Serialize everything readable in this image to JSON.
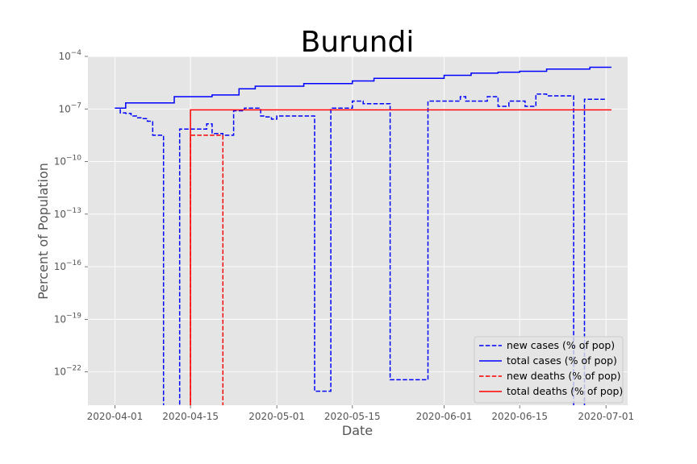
{
  "chart_data": {
    "type": "line",
    "title": "Burundi",
    "xlabel": "Date",
    "ylabel": "Percent of Population",
    "yscale": "log",
    "ylim_exp": [
      -23.9,
      -4
    ],
    "xlim": [
      "2020-03-27",
      "2020-07-05"
    ],
    "grid": true,
    "legend_position": "lower right",
    "x_ticks": [
      "2020-04-01",
      "2020-04-15",
      "2020-05-01",
      "2020-05-15",
      "2020-06-01",
      "2020-06-15",
      "2020-07-01"
    ],
    "y_ticks": [
      {
        "exp": -4,
        "base": "10",
        "power": "−4"
      },
      {
        "exp": -7,
        "base": "10",
        "power": "−7"
      },
      {
        "exp": -10,
        "base": "10",
        "power": "−10"
      },
      {
        "exp": -13,
        "base": "10",
        "power": "−13"
      },
      {
        "exp": -16,
        "base": "10",
        "power": "−16"
      },
      {
        "exp": -19,
        "base": "10",
        "power": "−19"
      },
      {
        "exp": -22,
        "base": "10",
        "power": "−22"
      }
    ],
    "series": [
      {
        "name": "new cases (% of pop)",
        "color": "#0000ff",
        "style": "dashed",
        "points": [
          [
            "2020-04-01",
            -6.95
          ],
          [
            "2020-04-02",
            -7.22
          ],
          [
            "2020-04-03",
            -7.25
          ],
          [
            "2020-04-04",
            -7.4
          ],
          [
            "2020-04-05",
            -7.5
          ],
          [
            "2020-04-06",
            -7.55
          ],
          [
            "2020-04-07",
            -7.7
          ],
          [
            "2020-04-08",
            -8.5
          ],
          [
            "2020-04-09",
            -8.5
          ],
          [
            "2020-04-10",
            null
          ],
          [
            "2020-04-11",
            null
          ],
          [
            "2020-04-12",
            null
          ],
          [
            "2020-04-13",
            -8.15
          ],
          [
            "2020-04-14",
            -8.15
          ],
          [
            "2020-04-15",
            -8.15
          ],
          [
            "2020-04-16",
            -8.15
          ],
          [
            "2020-04-17",
            -8.15
          ],
          [
            "2020-04-18",
            -7.85
          ],
          [
            "2020-04-19",
            -8.4
          ],
          [
            "2020-04-20",
            -8.4
          ],
          [
            "2020-04-21",
            -8.5
          ],
          [
            "2020-04-22",
            -8.5
          ],
          [
            "2020-04-23",
            -7.1
          ],
          [
            "2020-04-24",
            -7.1
          ],
          [
            "2020-04-25",
            -6.95
          ],
          [
            "2020-04-26",
            -6.95
          ],
          [
            "2020-04-27",
            -6.95
          ],
          [
            "2020-04-28",
            -7.4
          ],
          [
            "2020-04-29",
            -7.45
          ],
          [
            "2020-04-30",
            -7.58
          ],
          [
            "2020-05-01",
            -7.4
          ],
          [
            "2020-05-02",
            -7.4
          ],
          [
            "2020-05-03",
            -7.4
          ],
          [
            "2020-05-04",
            -7.4
          ],
          [
            "2020-05-05",
            -7.4
          ],
          [
            "2020-05-06",
            -7.4
          ],
          [
            "2020-05-07",
            -7.4
          ],
          [
            "2020-05-08",
            -23.1
          ],
          [
            "2020-05-09",
            -23.1
          ],
          [
            "2020-05-10",
            -23.1
          ],
          [
            "2020-05-11",
            -6.95
          ],
          [
            "2020-05-12",
            -6.95
          ],
          [
            "2020-05-13",
            -6.95
          ],
          [
            "2020-05-14",
            -6.95
          ],
          [
            "2020-05-15",
            -6.55
          ],
          [
            "2020-05-16",
            -6.55
          ],
          [
            "2020-05-17",
            -6.7
          ],
          [
            "2020-05-18",
            -6.7
          ],
          [
            "2020-05-19",
            -6.7
          ],
          [
            "2020-05-20",
            -6.7
          ],
          [
            "2020-05-21",
            -6.7
          ],
          [
            "2020-05-22",
            -22.45
          ],
          [
            "2020-05-23",
            -22.45
          ],
          [
            "2020-05-24",
            -22.45
          ],
          [
            "2020-05-25",
            -22.45
          ],
          [
            "2020-05-26",
            -22.45
          ],
          [
            "2020-05-27",
            -22.45
          ],
          [
            "2020-05-28",
            -22.45
          ],
          [
            "2020-05-29",
            -6.55
          ],
          [
            "2020-05-30",
            -6.55
          ],
          [
            "2020-05-31",
            -6.55
          ],
          [
            "2020-06-01",
            -6.55
          ],
          [
            "2020-06-02",
            -6.55
          ],
          [
            "2020-06-03",
            -6.55
          ],
          [
            "2020-06-04",
            -6.3
          ],
          [
            "2020-06-05",
            -6.55
          ],
          [
            "2020-06-06",
            -6.55
          ],
          [
            "2020-06-07",
            -6.55
          ],
          [
            "2020-06-08",
            -6.55
          ],
          [
            "2020-06-09",
            -6.3
          ],
          [
            "2020-06-10",
            -6.3
          ],
          [
            "2020-06-11",
            -6.85
          ],
          [
            "2020-06-12",
            -6.85
          ],
          [
            "2020-06-13",
            -6.55
          ],
          [
            "2020-06-14",
            -6.55
          ],
          [
            "2020-06-15",
            -6.55
          ],
          [
            "2020-06-16",
            -6.85
          ],
          [
            "2020-06-17",
            -6.85
          ],
          [
            "2020-06-18",
            -6.15
          ],
          [
            "2020-06-19",
            -6.15
          ],
          [
            "2020-06-20",
            -6.25
          ],
          [
            "2020-06-21",
            -6.25
          ],
          [
            "2020-06-22",
            -6.25
          ],
          [
            "2020-06-23",
            -6.25
          ],
          [
            "2020-06-24",
            -6.25
          ],
          [
            "2020-06-25",
            null
          ],
          [
            "2020-06-26",
            null
          ],
          [
            "2020-06-27",
            -6.45
          ],
          [
            "2020-06-28",
            -6.45
          ],
          [
            "2020-06-29",
            -6.45
          ],
          [
            "2020-06-30",
            -6.45
          ],
          [
            "2020-07-01",
            -6.45
          ]
        ]
      },
      {
        "name": "total cases (% of pop)",
        "color": "#0000ff",
        "style": "solid",
        "points": [
          [
            "2020-04-01",
            -6.95
          ],
          [
            "2020-04-02",
            -6.95
          ],
          [
            "2020-04-03",
            -6.65
          ],
          [
            "2020-04-07",
            -6.65
          ],
          [
            "2020-04-10",
            -6.65
          ],
          [
            "2020-04-12",
            -6.3
          ],
          [
            "2020-04-18",
            -6.3
          ],
          [
            "2020-04-19",
            -6.2
          ],
          [
            "2020-04-23",
            -6.2
          ],
          [
            "2020-04-24",
            -5.85
          ],
          [
            "2020-04-26",
            -5.85
          ],
          [
            "2020-04-27",
            -5.7
          ],
          [
            "2020-05-05",
            -5.7
          ],
          [
            "2020-05-06",
            -5.55
          ],
          [
            "2020-05-14",
            -5.55
          ],
          [
            "2020-05-15",
            -5.4
          ],
          [
            "2020-05-18",
            -5.4
          ],
          [
            "2020-05-19",
            -5.25
          ],
          [
            "2020-05-31",
            -5.25
          ],
          [
            "2020-06-01",
            -5.08
          ],
          [
            "2020-06-05",
            -5.08
          ],
          [
            "2020-06-06",
            -4.95
          ],
          [
            "2020-06-10",
            -4.95
          ],
          [
            "2020-06-11",
            -4.9
          ],
          [
            "2020-06-14",
            -4.9
          ],
          [
            "2020-06-15",
            -4.85
          ],
          [
            "2020-06-19",
            -4.85
          ],
          [
            "2020-06-20",
            -4.72
          ],
          [
            "2020-06-27",
            -4.72
          ],
          [
            "2020-06-28",
            -4.62
          ],
          [
            "2020-07-02",
            -4.62
          ]
        ]
      },
      {
        "name": "new deaths (% of pop)",
        "color": "#ff0000",
        "style": "dashed",
        "points": [
          [
            "2020-04-15",
            null
          ],
          [
            "2020-04-15",
            -8.5
          ],
          [
            "2020-04-21",
            -8.5
          ],
          [
            "2020-04-21",
            null
          ]
        ]
      },
      {
        "name": "total deaths (% of pop)",
        "color": "#ff0000",
        "style": "solid",
        "points": [
          [
            "2020-04-15",
            null
          ],
          [
            "2020-04-15",
            -7.05
          ],
          [
            "2020-07-02",
            -7.05
          ]
        ]
      }
    ]
  }
}
